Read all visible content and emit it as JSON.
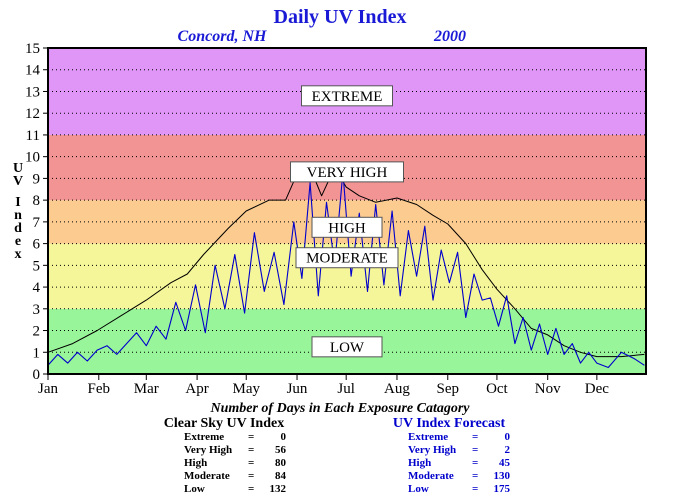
{
  "chart_data": {
    "type": "line",
    "title": "Daily UV Index",
    "location": "Concord, NH",
    "year": "2000",
    "ylabel": "UV Index",
    "ylim": [
      0,
      15
    ],
    "yticks": [
      "0",
      "1",
      "2",
      "3",
      "4",
      "5",
      "6",
      "7",
      "8",
      "9",
      "10",
      "11",
      "12",
      "13",
      "14",
      "15"
    ],
    "xlim": [
      0,
      365
    ],
    "x_months": [
      {
        "label": "Jan",
        "day": 0
      },
      {
        "label": "Feb",
        "day": 31
      },
      {
        "label": "Mar",
        "day": 60
      },
      {
        "label": "Apr",
        "day": 91
      },
      {
        "label": "May",
        "day": 121
      },
      {
        "label": "Jun",
        "day": 152
      },
      {
        "label": "Jul",
        "day": 182
      },
      {
        "label": "Aug",
        "day": 213
      },
      {
        "label": "Sep",
        "day": 244
      },
      {
        "label": "Oct",
        "day": 274
      },
      {
        "label": "Nov",
        "day": 305
      },
      {
        "label": "Dec",
        "day": 335
      }
    ],
    "grid": true,
    "bands": [
      {
        "label": "LOW",
        "from": 0,
        "to": 3,
        "color": "#99f599",
        "label_y": 1.25
      },
      {
        "label": "MODERATE",
        "from": 3,
        "to": 6,
        "color": "#f5f599",
        "label_y": 5.35
      },
      {
        "label": "HIGH",
        "from": 6,
        "to": 8,
        "color": "#fbcb90",
        "label_y": 6.75
      },
      {
        "label": "VERY HIGH",
        "from": 8,
        "to": 11,
        "color": "#f29494",
        "label_y": 9.3
      },
      {
        "label": "EXTREME",
        "from": 11,
        "to": 15,
        "color": "#df96f7",
        "label_y": 12.8
      }
    ],
    "series": [
      {
        "role": "clear_sky",
        "color": "#000000",
        "x": [
          0,
          15,
          30,
          45,
          60,
          75,
          85,
          95,
          110,
          121,
          135,
          145,
          152,
          160,
          167,
          175,
          182,
          190,
          200,
          213,
          225,
          235,
          244,
          255,
          265,
          274,
          285,
          295,
          305,
          315,
          325,
          335,
          350,
          364
        ],
        "y": [
          1.0,
          1.4,
          2.0,
          2.7,
          3.4,
          4.2,
          4.6,
          5.5,
          6.7,
          7.5,
          8.0,
          8.0,
          9.2,
          9.5,
          8.2,
          9.5,
          8.6,
          8.2,
          7.9,
          8.1,
          7.8,
          7.3,
          6.9,
          6.0,
          4.8,
          3.9,
          3.0,
          2.1,
          1.8,
          1.3,
          1.0,
          0.8,
          0.8,
          0.9
        ]
      },
      {
        "role": "forecast",
        "color": "#0000cc",
        "x": [
          0,
          6,
          12,
          18,
          24,
          30,
          36,
          42,
          48,
          54,
          60,
          66,
          72,
          78,
          84,
          90,
          96,
          102,
          108,
          114,
          120,
          126,
          132,
          138,
          144,
          150,
          155,
          160,
          165,
          170,
          175,
          180,
          185,
          190,
          195,
          200,
          205,
          210,
          215,
          220,
          225,
          230,
          235,
          240,
          245,
          250,
          255,
          260,
          265,
          270,
          275,
          280,
          285,
          290,
          295,
          300,
          305,
          310,
          315,
          320,
          325,
          330,
          335,
          342,
          350,
          358,
          364
        ],
        "y": [
          0.4,
          0.9,
          0.5,
          1.0,
          0.6,
          1.1,
          1.3,
          0.9,
          1.4,
          1.9,
          1.3,
          2.2,
          1.6,
          3.3,
          2.0,
          4.1,
          1.9,
          5.0,
          3.0,
          5.5,
          2.8,
          6.5,
          3.8,
          5.6,
          3.2,
          7.0,
          4.4,
          8.8,
          3.6,
          7.9,
          5.0,
          9.3,
          4.5,
          7.4,
          3.8,
          7.8,
          4.1,
          7.5,
          3.6,
          6.6,
          4.5,
          6.8,
          3.4,
          5.7,
          4.2,
          5.6,
          2.6,
          4.6,
          3.4,
          3.5,
          2.2,
          3.6,
          1.4,
          2.6,
          1.1,
          2.3,
          0.9,
          2.1,
          0.9,
          1.4,
          0.5,
          1.0,
          0.5,
          0.3,
          1.0,
          0.7,
          0.4
        ]
      }
    ]
  },
  "stats": {
    "caption": "Number of Days in Each Exposure Catagory",
    "clear_sky": {
      "heading": "Clear Sky UV Index",
      "rows": [
        {
          "label": "Extreme",
          "eq": "=",
          "value": "0"
        },
        {
          "label": "Very High",
          "eq": "=",
          "value": "56"
        },
        {
          "label": "High",
          "eq": "=",
          "value": "80"
        },
        {
          "label": "Moderate",
          "eq": "=",
          "value": "84"
        },
        {
          "label": "Low",
          "eq": "=",
          "value": "132"
        }
      ]
    },
    "forecast": {
      "heading": "UV Index Forecast",
      "rows": [
        {
          "label": "Extreme",
          "eq": "=",
          "value": "0"
        },
        {
          "label": "Very High",
          "eq": "=",
          "value": "2"
        },
        {
          "label": "High",
          "eq": "=",
          "value": "45"
        },
        {
          "label": "Moderate",
          "eq": "=",
          "value": "130"
        },
        {
          "label": "Low",
          "eq": "=",
          "value": "175"
        }
      ]
    }
  },
  "colors": {
    "title": "#1a1ad6",
    "forecast_text": "#0000cc",
    "clear_sky_text": "#000000"
  }
}
